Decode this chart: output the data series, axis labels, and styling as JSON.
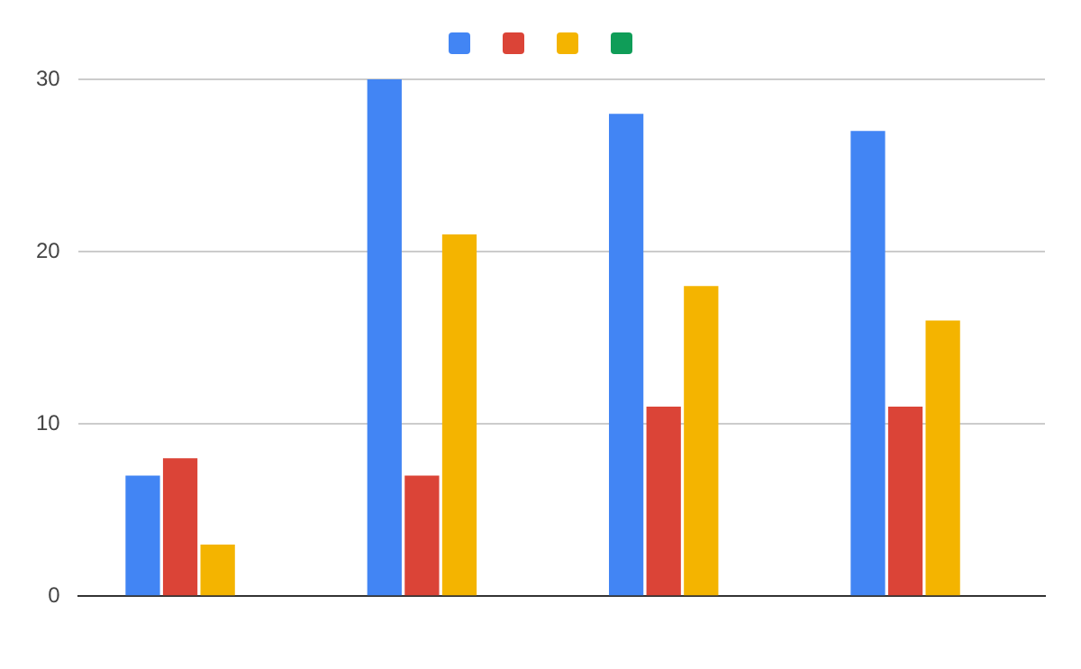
{
  "chart_data": {
    "type": "bar",
    "categories": [
      null,
      null,
      null,
      null
    ],
    "series": [
      {
        "color": "#4285f4",
        "values": [
          7,
          30,
          28,
          27
        ]
      },
      {
        "color": "#db4437",
        "values": [
          8,
          7,
          11,
          11
        ]
      },
      {
        "color": "#f4b400",
        "values": [
          3,
          21,
          18,
          16
        ]
      },
      {
        "color": "#0f9d58",
        "values": [
          null,
          null,
          null,
          null
        ]
      }
    ],
    "ylim": [
      0,
      30
    ],
    "yticks": [
      0,
      10,
      20,
      30
    ],
    "grid": "y"
  }
}
